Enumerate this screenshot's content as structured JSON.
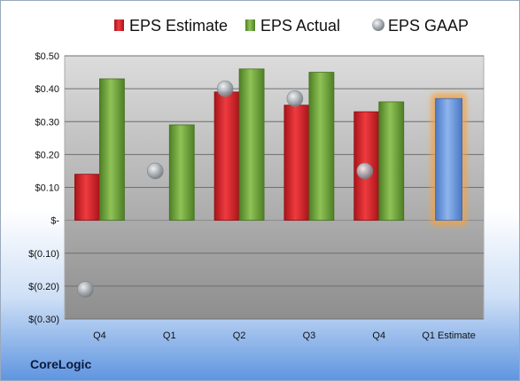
{
  "chart_data": {
    "type": "bar",
    "categories": [
      "Q4",
      "Q1",
      "Q2",
      "Q3",
      "Q4",
      "Q1 Estimate"
    ],
    "series": [
      {
        "name": "EPS Estimate",
        "values": [
          0.14,
          null,
          0.39,
          0.35,
          0.33,
          null
        ],
        "color": "#d8232a"
      },
      {
        "name": "EPS Actual",
        "values": [
          0.43,
          0.29,
          0.46,
          0.45,
          0.36,
          null
        ],
        "color": "#6fa83c"
      },
      {
        "name": "EPS GAAP",
        "values": [
          -0.21,
          0.15,
          0.4,
          0.37,
          0.15,
          null
        ],
        "color": "#9ea5ad"
      }
    ],
    "forecast": {
      "category": "Q1 Estimate",
      "value": 0.37,
      "color": "#6f9be0",
      "glow": "#f5a23c"
    },
    "yticks": [
      {
        "value": 0.5,
        "label": "$0.50"
      },
      {
        "value": 0.4,
        "label": "$0.40"
      },
      {
        "value": 0.3,
        "label": "$0.30"
      },
      {
        "value": 0.2,
        "label": "$0.20"
      },
      {
        "value": 0.1,
        "label": "$0.10"
      },
      {
        "value": 0,
        "label": "$-"
      },
      {
        "value": -0.1,
        "label": "$(0.10)"
      },
      {
        "value": -0.2,
        "label": "$(0.20)"
      },
      {
        "value": -0.3,
        "label": "$(0.30)"
      }
    ],
    "ylim": [
      -0.3,
      0.5
    ],
    "grid": true,
    "legend_position": "top"
  },
  "company": "CoreLogic"
}
